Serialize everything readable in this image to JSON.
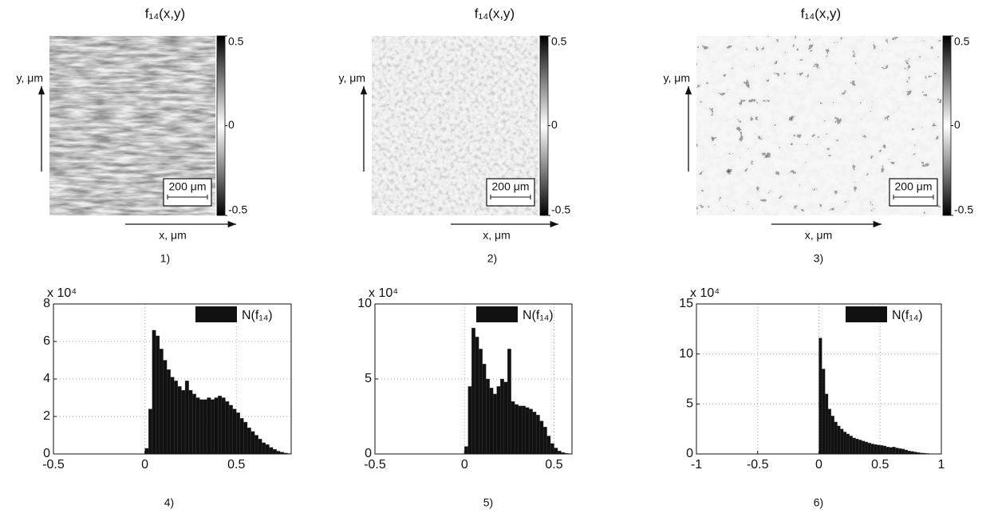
{
  "chart_data": [
    {
      "type": "map",
      "title": "f₁₄(x,y)",
      "xlabel": "x, μm",
      "ylabel": "y, μm",
      "scale_bar": "200 μm",
      "clim": [
        -0.5,
        0.5
      ],
      "cticks": [
        -0.5,
        0,
        0.5
      ],
      "caption": "1)"
    },
    {
      "type": "map",
      "title": "f₁₄(x,y)",
      "xlabel": "x, μm",
      "ylabel": "y, μm",
      "scale_bar": "200 μm",
      "clim": [
        -0.5,
        0.5
      ],
      "cticks": [
        -0.5,
        0,
        0.5
      ],
      "caption": "2)"
    },
    {
      "type": "map",
      "title": "f₁₄(x,y)",
      "xlabel": "x, μm",
      "ylabel": "y, μm",
      "scale_bar": "200 μm",
      "clim": [
        -0.5,
        0.5
      ],
      "cticks": [
        -0.5,
        0,
        0.5
      ],
      "caption": "3)"
    },
    {
      "type": "histogram",
      "multiplier": "x 10⁴",
      "legend": "upper right",
      "grid": true,
      "series": [
        {
          "name": "N(f₁₄)",
          "color": "#111111",
          "values": [
            0.3,
            2.4,
            6.6,
            6.3,
            5.6,
            5.0,
            4.5,
            4.1,
            3.9,
            3.6,
            3.4,
            3.9,
            3.4,
            3.2,
            3.0,
            2.9,
            2.9,
            3.0,
            2.9,
            3.0,
            3.1,
            3.0,
            2.8,
            2.6,
            2.4,
            2.2,
            1.9,
            1.7,
            1.4,
            1.2,
            1.0,
            0.8,
            0.6,
            0.5,
            0.35,
            0.25,
            0.15,
            0.1,
            0.05,
            0.02
          ]
        }
      ],
      "bins": [
        0,
        0.02,
        0.04,
        0.06,
        0.08,
        0.1,
        0.12,
        0.14,
        0.16,
        0.18,
        0.2,
        0.22,
        0.24,
        0.26,
        0.28,
        0.3,
        0.32,
        0.34,
        0.36,
        0.38,
        0.4,
        0.42,
        0.44,
        0.46,
        0.48,
        0.5,
        0.52,
        0.54,
        0.56,
        0.58,
        0.6,
        0.62,
        0.64,
        0.66,
        0.68,
        0.7,
        0.72,
        0.74,
        0.76,
        0.78,
        0.8
      ],
      "xlim": [
        -0.5,
        0.8
      ],
      "xticks": [
        -0.5,
        0,
        0.5
      ],
      "ylim": [
        0,
        8
      ],
      "yticks": [
        0,
        2,
        4,
        6,
        8
      ],
      "caption": "4)"
    },
    {
      "type": "histogram",
      "multiplier": "x 10⁴",
      "legend": "upper right",
      "grid": true,
      "series": [
        {
          "name": "N(f₁₄)",
          "color": "#111111",
          "values": [
            0.5,
            4.5,
            8.4,
            7.8,
            7.0,
            6.0,
            5.0,
            4.4,
            4.0,
            4.5,
            5.0,
            4.8,
            7.0,
            3.5,
            3.3,
            3.2,
            3.2,
            3.1,
            3.0,
            2.8,
            2.6,
            2.2,
            1.8,
            1.2,
            0.7,
            0.4,
            0.2,
            0.1,
            0.05,
            0.02
          ]
        }
      ],
      "bins": [
        0,
        0.02,
        0.04,
        0.06,
        0.08,
        0.1,
        0.12,
        0.14,
        0.16,
        0.18,
        0.2,
        0.22,
        0.24,
        0.26,
        0.28,
        0.3,
        0.32,
        0.34,
        0.36,
        0.38,
        0.4,
        0.42,
        0.44,
        0.46,
        0.48,
        0.5,
        0.52,
        0.54,
        0.56,
        0.58,
        0.6
      ],
      "xlim": [
        -0.5,
        0.6
      ],
      "xticks": [
        -0.5,
        0,
        0.5
      ],
      "ylim": [
        0,
        10
      ],
      "yticks": [
        0,
        5,
        10
      ],
      "caption": "5)"
    },
    {
      "type": "histogram",
      "multiplier": "x 10⁴",
      "legend": "upper right",
      "grid": true,
      "series": [
        {
          "name": "N(f₁₄)",
          "color": "#111111",
          "values": [
            11.6,
            8.5,
            6.0,
            4.5,
            3.8,
            3.2,
            2.8,
            2.5,
            2.2,
            2.0,
            1.8,
            1.6,
            1.5,
            1.4,
            1.3,
            1.2,
            1.1,
            1.0,
            0.95,
            0.9,
            0.85,
            0.8,
            0.7,
            0.65,
            0.7,
            0.6,
            0.55,
            0.5,
            0.4,
            0.3,
            0.25,
            0.2,
            0.15,
            0.1,
            0.08,
            0.05,
            0.03,
            0.02,
            0.01,
            0.0
          ]
        }
      ],
      "bins": [
        0,
        0.025,
        0.05,
        0.075,
        0.1,
        0.125,
        0.15,
        0.175,
        0.2,
        0.225,
        0.25,
        0.275,
        0.3,
        0.325,
        0.35,
        0.375,
        0.4,
        0.425,
        0.45,
        0.475,
        0.5,
        0.525,
        0.55,
        0.575,
        0.6,
        0.625,
        0.65,
        0.675,
        0.7,
        0.725,
        0.75,
        0.775,
        0.8,
        0.825,
        0.85,
        0.875,
        0.9,
        0.925,
        0.95,
        0.975,
        1
      ],
      "xlim": [
        -1,
        1
      ],
      "xticks": [
        -1,
        -0.5,
        0,
        0.5,
        1
      ],
      "ylim": [
        0,
        15
      ],
      "yticks": [
        0,
        5,
        10,
        15
      ],
      "caption": "6)"
    }
  ]
}
